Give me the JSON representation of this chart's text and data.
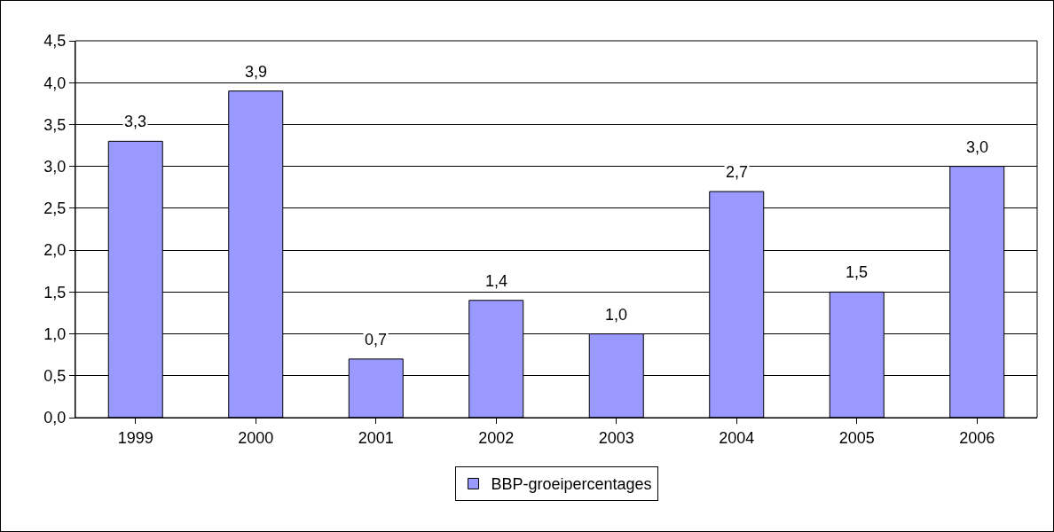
{
  "chart_data": {
    "type": "bar",
    "categories": [
      "1999",
      "2000",
      "2001",
      "2002",
      "2003",
      "2004",
      "2005",
      "2006"
    ],
    "series": [
      {
        "name": "BBP-groeipercentages",
        "color": "#9999ff",
        "values": [
          3.3,
          3.9,
          0.7,
          1.4,
          1.0,
          2.7,
          1.5,
          3.0
        ],
        "value_labels": [
          "3,3",
          "3,9",
          "0,7",
          "1,4",
          "1,0",
          "2,7",
          "1,5",
          "3,0"
        ]
      }
    ],
    "ylim": [
      0,
      4.5
    ],
    "yticks": [
      {
        "value": 0,
        "label": "0,0"
      },
      {
        "value": 0.5,
        "label": "0,5"
      },
      {
        "value": 1,
        "label": "1,0"
      },
      {
        "value": 1.5,
        "label": "1,5"
      },
      {
        "value": 2,
        "label": "2,0"
      },
      {
        "value": 2.5,
        "label": "2,5"
      },
      {
        "value": 3,
        "label": "3,0"
      },
      {
        "value": 3.5,
        "label": "3,5"
      },
      {
        "value": 4,
        "label": "4,0"
      },
      {
        "value": 4.5,
        "label": "4,5"
      }
    ],
    "grid": "y",
    "legend": "bottom"
  }
}
